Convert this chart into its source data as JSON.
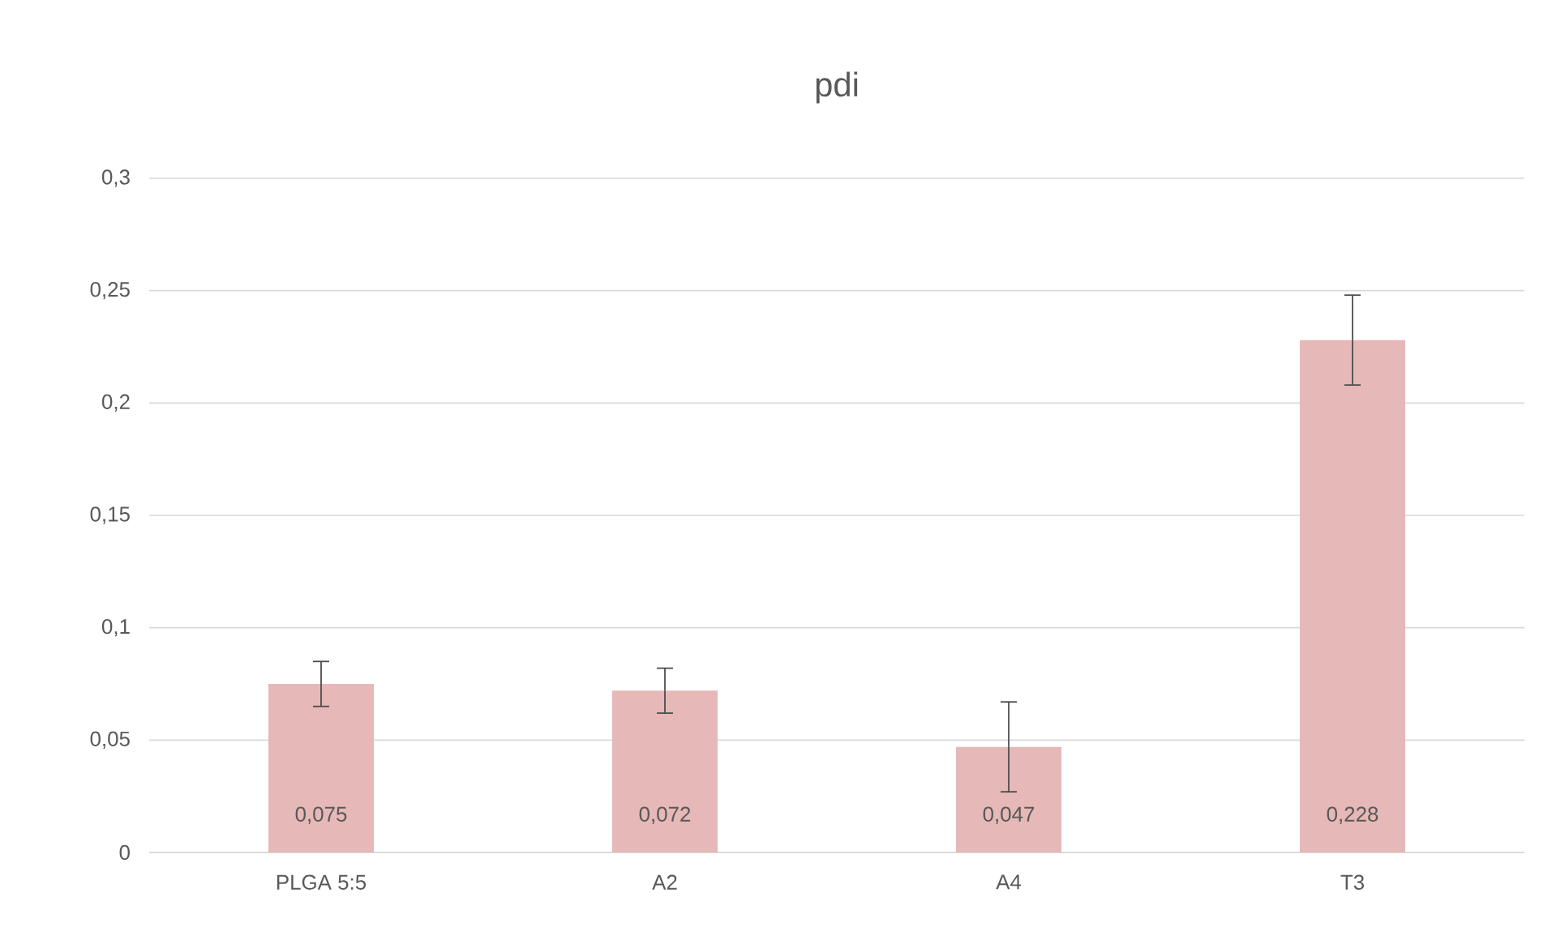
{
  "chart_data": {
    "type": "bar",
    "title": "pdi",
    "categories": [
      "PLGA 5:5",
      "A2",
      "A4",
      "T3"
    ],
    "values": [
      0.075,
      0.072,
      0.047,
      0.228
    ],
    "errors": [
      0.01,
      0.01,
      0.02,
      0.02
    ],
    "value_labels": [
      "0,075",
      "0,072",
      "0,047",
      "0,228"
    ],
    "color": "#e6b8b7",
    "ylim": [
      0,
      0.3
    ],
    "yticks": [
      0,
      {
        "value": 0.05,
        "label": "0,05"
      },
      {
        "value": 0.1,
        "label": "0,1"
      },
      {
        "value": 0.15,
        "label": "0,15"
      },
      {
        "value": 0.2,
        "label": "0,2"
      },
      {
        "value": 0.25,
        "label": "0,25"
      },
      {
        "value": 0.3,
        "label": "0,3"
      }
    ],
    "grid": "y"
  }
}
